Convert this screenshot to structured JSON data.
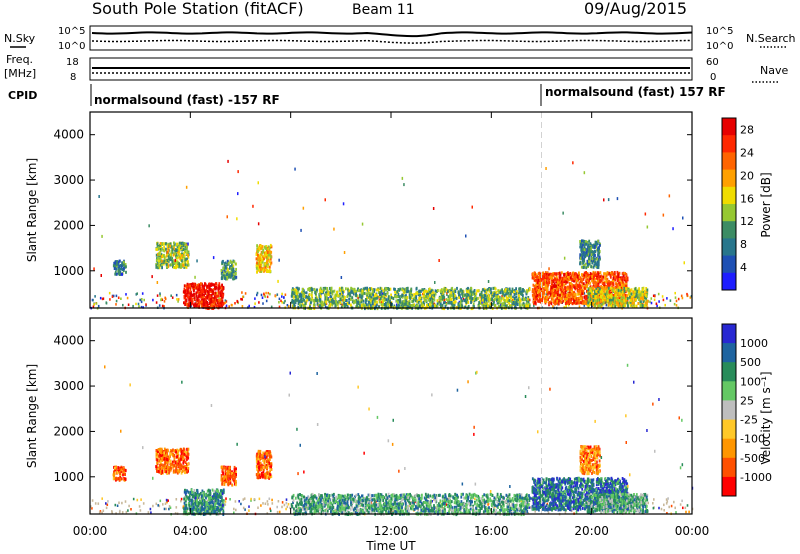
{
  "header": {
    "station": "South Pole Station (fitACF)",
    "beam": "Beam 11",
    "date": "09/Aug/2015"
  },
  "colors": {
    "power": [
      "#1e1eff",
      "#1e50b4",
      "#28768c",
      "#3c8c64",
      "#96c832",
      "#f0dc00",
      "#ffa000",
      "#ff6400",
      "#ff2800",
      "#e60000"
    ],
    "velocity": [
      "#ff0000",
      "#ff5000",
      "#ff9600",
      "#ffc828",
      "#bebebe",
      "#64c864",
      "#288c5a",
      "#1e64a0",
      "#2828d2"
    ],
    "ground": "#c8b89a",
    "grid_line": "#d2d2d2"
  },
  "top_panels": {
    "nsky_label": "N.Sky",
    "nsearch_label": "N.Search",
    "left_ticks": [
      "10^5",
      "10^0"
    ],
    "right_ticks": [
      "10^5",
      "10^0"
    ],
    "freq_label": "Freq.",
    "freq_unit": "[MHz]",
    "freq_ticks": [
      "18",
      "8"
    ],
    "nave_label": "Nave",
    "nave_ticks": [
      "60",
      "0"
    ],
    "cpid_label": "CPID",
    "cpid_segments": [
      {
        "label": "normalsound (fast) -157 RF",
        "start_hour": 0
      },
      {
        "label": "normalsound (fast) 157 RF",
        "start_hour": 18
      }
    ]
  },
  "chart_data": [
    {
      "type": "heatmap",
      "panel": "power",
      "xlabel": "Time UT",
      "ylabel": "Slant Range [km]",
      "xlim": [
        0,
        24
      ],
      "ylim": [
        180,
        4500
      ],
      "x_ticks": [
        "00:00",
        "04:00",
        "08:00",
        "12:00",
        "16:00",
        "20:00",
        "00:00"
      ],
      "y_ticks": [
        1000,
        2000,
        3000,
        4000
      ],
      "colorbar": {
        "label": "Power [dB]",
        "ticks": [
          "28",
          "24",
          "20",
          "16",
          "12",
          "8",
          "4"
        ],
        "range": [
          0,
          32
        ]
      },
      "scatter_regions": [
        {
          "t": [
            0.9,
            1.4
          ],
          "r": [
            950,
            1250
          ],
          "level": 0.25
        },
        {
          "t": [
            2.6,
            3.9
          ],
          "r": [
            1100,
            1650
          ],
          "level": 0.45
        },
        {
          "t": [
            3.7,
            5.3
          ],
          "r": [
            200,
            750
          ],
          "level": 0.92
        },
        {
          "t": [
            5.2,
            5.8
          ],
          "r": [
            850,
            1250
          ],
          "level": 0.35
        },
        {
          "t": [
            6.6,
            7.2
          ],
          "r": [
            1000,
            1600
          ],
          "level": 0.6
        },
        {
          "t": [
            17.6,
            21.4
          ],
          "r": [
            300,
            1000
          ],
          "level": 0.78
        },
        {
          "t": [
            19.8,
            22.2
          ],
          "r": [
            250,
            650
          ],
          "level": 0.5
        },
        {
          "t": [
            19.5,
            20.3
          ],
          "r": [
            1100,
            1700
          ],
          "level": 0.3
        },
        {
          "t": [
            8.0,
            17.5
          ],
          "r": [
            200,
            650
          ],
          "level": 0.4
        }
      ]
    },
    {
      "type": "heatmap",
      "panel": "velocity",
      "xlabel": "Time UT",
      "ylabel": "Slant Range [km]",
      "xlim": [
        0,
        24
      ],
      "ylim": [
        180,
        4500
      ],
      "x_ticks": [
        "00:00",
        "04:00",
        "08:00",
        "12:00",
        "16:00",
        "20:00",
        "00:00"
      ],
      "y_ticks": [
        1000,
        2000,
        3000,
        4000
      ],
      "colorbar": {
        "label": "Velocity [m s⁻¹]",
        "ticks": [
          "1000",
          "500",
          "100",
          "25",
          "-25",
          "-100",
          "-500",
          "-1000"
        ],
        "range": [
          -1200,
          1200
        ]
      },
      "scatter_regions": [
        {
          "t": [
            0.9,
            1.4
          ],
          "r": [
            950,
            1250
          ],
          "level": 0.2
        },
        {
          "t": [
            2.6,
            3.9
          ],
          "r": [
            1100,
            1650
          ],
          "level": 0.22
        },
        {
          "t": [
            3.7,
            5.3
          ],
          "r": [
            200,
            750
          ],
          "level": 0.72
        },
        {
          "t": [
            5.2,
            5.8
          ],
          "r": [
            850,
            1250
          ],
          "level": 0.18
        },
        {
          "t": [
            6.6,
            7.2
          ],
          "r": [
            1000,
            1600
          ],
          "level": 0.2
        },
        {
          "t": [
            17.6,
            21.4
          ],
          "r": [
            300,
            1000
          ],
          "level": 0.8
        },
        {
          "t": [
            19.8,
            22.2
          ],
          "r": [
            250,
            650
          ],
          "level": 0.66
        },
        {
          "t": [
            19.5,
            20.3
          ],
          "r": [
            1100,
            1700
          ],
          "level": 0.25
        },
        {
          "t": [
            8.0,
            17.5
          ],
          "r": [
            200,
            650
          ],
          "level": 0.68
        }
      ]
    }
  ]
}
